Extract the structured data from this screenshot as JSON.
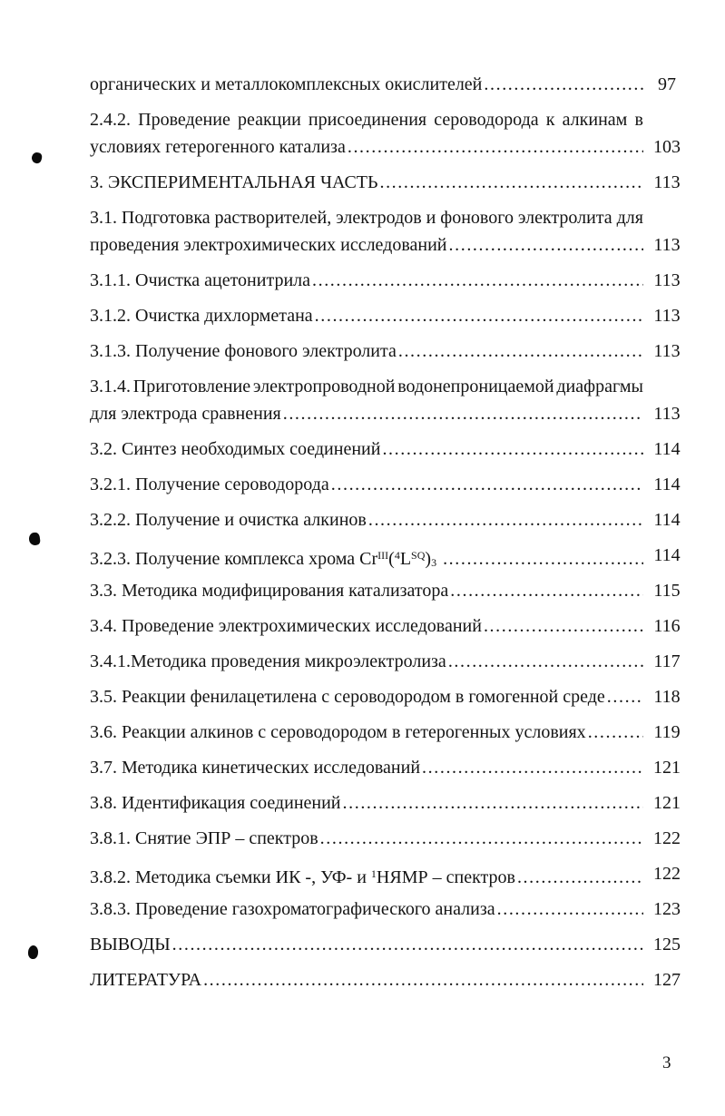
{
  "colors": {
    "background": "#ffffff",
    "text": "#141414"
  },
  "page": {
    "number_label": "3"
  },
  "toc": {
    "entries": [
      {
        "lines": [
          "органических и металлокомплексных окислителей"
        ],
        "page": "97"
      },
      {
        "lines": [
          "2.4.2. Проведение реакции присоединения сероводорода к алкинам в",
          "условиях гетерогенного катализа"
        ],
        "page": "103"
      },
      {
        "lines": [
          "3. ЭКСПЕРИМЕНТАЛЬНАЯ ЧАСТЬ"
        ],
        "page": "113"
      },
      {
        "lines": [
          "3.1. Подготовка растворителей, электродов и фонового электролита для",
          "проведения электрохимических исследований"
        ],
        "page": "113"
      },
      {
        "lines": [
          "3.1.1. Очистка ацетонитрила"
        ],
        "page": "113"
      },
      {
        "lines": [
          "3.1.2. Очистка дихлорметана"
        ],
        "page": "113"
      },
      {
        "lines": [
          "3.1.3. Получение фонового электролита"
        ],
        "page": "113"
      },
      {
        "lines": [
          "3.1.4. Приготовление электропроводной водонепроницаемой диафрагмы",
          "для электрода сравнения"
        ],
        "page": "113"
      },
      {
        "lines": [
          "3.2. Синтез необходимых соединений"
        ],
        "page": "114"
      },
      {
        "lines": [
          "3.2.1. Получение сероводорода"
        ],
        "page": "114"
      },
      {
        "lines": [
          "3.2.2. Получение и очистка алкинов"
        ],
        "page": "114"
      },
      {
        "lines": [
          [
            {
              "t": "3.2.3. Получение комплекса хрома Cr"
            },
            {
              "t": "III",
              "style": "sup"
            },
            {
              "t": "("
            },
            {
              "t": "4",
              "style": "sup"
            },
            {
              "t": "L"
            },
            {
              "t": "SQ",
              "style": "sup"
            },
            {
              "t": ")"
            },
            {
              "t": "3",
              "style": "sub"
            },
            {
              "t": " "
            }
          ]
        ],
        "page": "114"
      },
      {
        "lines": [
          "3.3. Методика модифицирования катализатора"
        ],
        "page": "115"
      },
      {
        "lines": [
          "3.4. Проведение электрохимических исследований"
        ],
        "page": "116"
      },
      {
        "lines": [
          "3.4.1.Методика проведения микроэлектролиза"
        ],
        "page": "117"
      },
      {
        "lines": [
          "3.5. Реакции фенилацетилена с сероводородом в гомогенной среде"
        ],
        "page": "118"
      },
      {
        "lines": [
          "3.6. Реакции алкинов с сероводородом в гетерогенных условиях"
        ],
        "page": "119"
      },
      {
        "lines": [
          "3.7. Методика кинетических исследований"
        ],
        "page": "121"
      },
      {
        "lines": [
          "3.8. Идентификация соединений"
        ],
        "page": "121"
      },
      {
        "lines": [
          "3.8.1. Снятие ЭПР – спектров"
        ],
        "page": "122"
      },
      {
        "lines": [
          [
            {
              "t": "3.8.2. Методика съемки ИК -, УФ- и "
            },
            {
              "t": "1",
              "style": "sup"
            },
            {
              "t": "НЯМР – спектров"
            }
          ]
        ],
        "page": "122"
      },
      {
        "lines": [
          "3.8.3. Проведение газохроматографического анализа"
        ],
        "page": "123"
      },
      {
        "lines": [
          "ВЫВОДЫ"
        ],
        "page": "125"
      },
      {
        "lines": [
          "ЛИТЕРАТУРА"
        ],
        "page": "127"
      }
    ]
  }
}
